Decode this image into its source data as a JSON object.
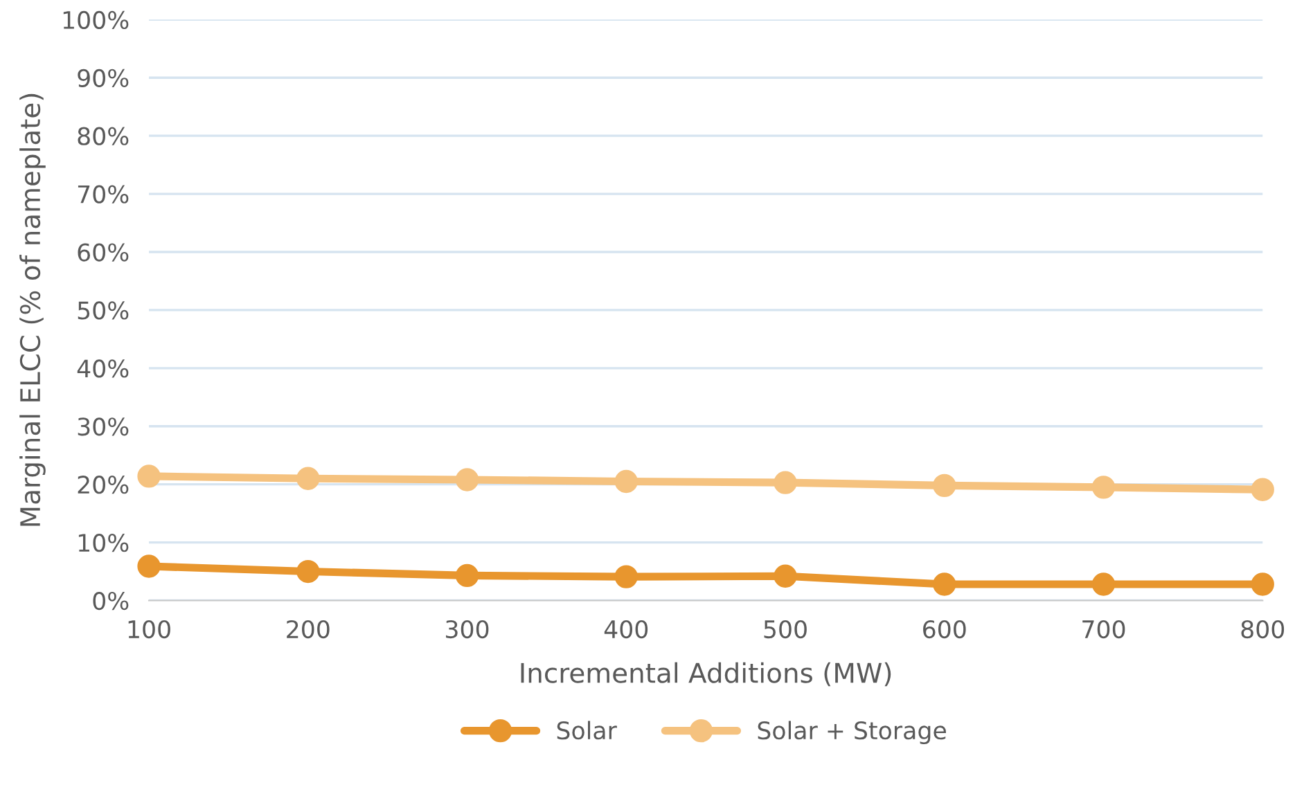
{
  "chart_data": {
    "type": "line",
    "xlabel": "Incremental Additions (MW)",
    "ylabel": "Marginal ELCC (% of nameplate)",
    "x": [
      100,
      200,
      300,
      400,
      500,
      600,
      700,
      800
    ],
    "series": [
      {
        "name": "Solar",
        "color": "#e8962e",
        "values": [
          5.9,
          5.0,
          4.3,
          4.1,
          4.2,
          2.8,
          2.8,
          2.8
        ]
      },
      {
        "name": "Solar + Storage",
        "color": "#f5c27f",
        "values": [
          21.4,
          21.0,
          20.8,
          20.5,
          20.3,
          19.8,
          19.5,
          19.1
        ]
      }
    ],
    "xlim": [
      100,
      800
    ],
    "xticks": [
      100,
      200,
      300,
      400,
      500,
      600,
      700,
      800
    ],
    "ylim": [
      0,
      100
    ],
    "yticks": [
      {
        "value": 0,
        "label": "0%"
      },
      {
        "value": 10,
        "label": "10%"
      },
      {
        "value": 20,
        "label": "20%"
      },
      {
        "value": 30,
        "label": "30%"
      },
      {
        "value": 40,
        "label": "40%"
      },
      {
        "value": 50,
        "label": "50%"
      },
      {
        "value": 60,
        "label": "60%"
      },
      {
        "value": 70,
        "label": "70%"
      },
      {
        "value": 80,
        "label": "80%"
      },
      {
        "value": 90,
        "label": "90%"
      },
      {
        "value": 100,
        "label": "100%"
      }
    ],
    "grid": "y",
    "legend": "bottom",
    "marker": "circle",
    "line_style": "solid"
  }
}
